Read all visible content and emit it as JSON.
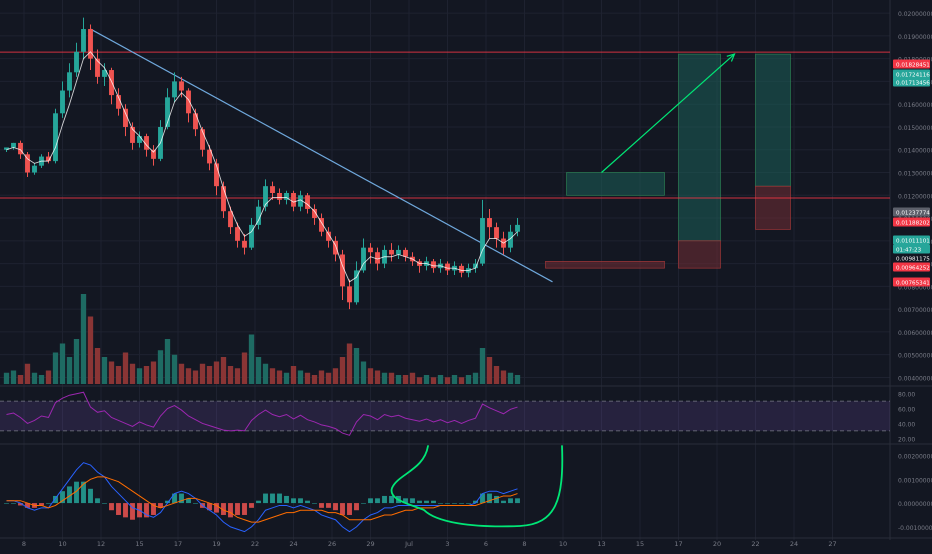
{
  "colors": {
    "background": "#131722",
    "grid": "#1e2230",
    "up": "#26a69a",
    "down": "#ef5350",
    "volume_up": "#1e6b63",
    "volume_down": "#8a3535",
    "horizontal_line": "#f23645",
    "trendline": "#6fa8dc",
    "ma_line": "#ffffff",
    "rsi_line": "#9c27b0",
    "rsi_band": "#7e57c2",
    "macd_line": "#2962ff",
    "signal_line": "#ff6d00",
    "hist_up": "#26a69a",
    "hist_down": "#ef5350",
    "annotation_green": "#00e676",
    "target_zone": "#1b5e58",
    "stop_zone": "#6b2b33",
    "axis_text": "#787b86"
  },
  "chart_data": [
    {
      "type": "candlestick",
      "panel": "price",
      "symbol_pair": "",
      "x_tick_labels": [
        "8",
        "10",
        "12",
        "15",
        "17",
        "19",
        "22",
        "24",
        "26",
        "29",
        "Jul",
        "3",
        "6",
        "8",
        "10",
        "13",
        "15",
        "17",
        "20",
        "22",
        "24",
        "27"
      ],
      "y_tick_labels": [
        "0.02000000",
        "0.01900000",
        "0.01800000",
        "0.01700000",
        "0.01600000",
        "0.01500000",
        "0.01400000",
        "0.01300000",
        "0.01200000",
        "0.01100000",
        "0.01000000",
        "0.00900000",
        "0.00800000",
        "0.00700000",
        "0.00600000",
        "0.00500000",
        "0.00400000"
      ],
      "ylim": [
        0.0038,
        0.0204
      ],
      "price_labels": [
        {
          "text": "0.01828451",
          "color": "#f23645"
        },
        {
          "text": "0.01724116",
          "color": "#26a69a"
        },
        {
          "text": "0.01713456",
          "color": "#26a69a"
        },
        {
          "text": "0.01237774",
          "color": "#5d606b"
        },
        {
          "text": "0.01188202",
          "color": "#f23645"
        },
        {
          "text": "0.01011101",
          "color": "#26a69a"
        },
        {
          "text": "01:47:23",
          "color": "#26a69a"
        },
        {
          "text": "0.00981175",
          "color": "#131722"
        },
        {
          "text": "0.00964252",
          "color": "#f23645"
        },
        {
          "text": "0.00765341",
          "color": "#f23645"
        }
      ],
      "horizontal_levels": [
        0.01828451,
        0.01188202
      ],
      "trendline": {
        "from": [
          12,
          0.0193
        ],
        "to": [
          78,
          0.0082
        ]
      },
      "zones": [
        {
          "kind": "target",
          "x_range": [
            80,
            94
          ],
          "y_range": [
            0.012,
            0.013
          ]
        },
        {
          "kind": "stop",
          "x_range": [
            77,
            94
          ],
          "y_range": [
            0.0088,
            0.0091
          ]
        },
        {
          "kind": "target",
          "x_range": [
            96,
            102
          ],
          "y_range": [
            0.01,
            0.0182
          ]
        },
        {
          "kind": "stop",
          "x_range": [
            96,
            102
          ],
          "y_range": [
            0.0088,
            0.01
          ]
        },
        {
          "kind": "target",
          "x_range": [
            107,
            112
          ],
          "y_range": [
            0.0124,
            0.0182
          ]
        },
        {
          "kind": "stop",
          "x_range": [
            107,
            112
          ],
          "y_range": [
            0.0105,
            0.0124
          ]
        }
      ],
      "arrow": {
        "from": [
          85,
          0.013
        ],
        "to": [
          104,
          0.0182
        ]
      },
      "candles": [
        [
          0,
          0.014,
          0.0141,
          0.0141,
          0.0139
        ],
        [
          1,
          0.0141,
          0.0143,
          0.0143,
          0.014
        ],
        [
          2,
          0.0143,
          0.0138,
          0.0144,
          0.0136
        ],
        [
          3,
          0.0138,
          0.013,
          0.0139,
          0.0128
        ],
        [
          4,
          0.013,
          0.0133,
          0.0134,
          0.0129
        ],
        [
          5,
          0.0133,
          0.0137,
          0.0138,
          0.0132
        ],
        [
          6,
          0.0137,
          0.0135,
          0.0139,
          0.0134
        ],
        [
          7,
          0.0135,
          0.0156,
          0.0158,
          0.0134
        ],
        [
          8,
          0.0156,
          0.0166,
          0.017,
          0.0154
        ],
        [
          9,
          0.0166,
          0.0174,
          0.0178,
          0.0163
        ],
        [
          10,
          0.0174,
          0.0183,
          0.0187,
          0.0172
        ],
        [
          11,
          0.0183,
          0.0193,
          0.0198,
          0.018
        ],
        [
          12,
          0.0193,
          0.018,
          0.0195,
          0.0175
        ],
        [
          13,
          0.018,
          0.0172,
          0.0184,
          0.0169
        ],
        [
          14,
          0.0172,
          0.0175,
          0.0178,
          0.0168
        ],
        [
          15,
          0.0175,
          0.0164,
          0.0176,
          0.016
        ],
        [
          16,
          0.0164,
          0.0158,
          0.0167,
          0.0155
        ],
        [
          17,
          0.0158,
          0.015,
          0.016,
          0.0146
        ],
        [
          18,
          0.015,
          0.0143,
          0.0152,
          0.014
        ],
        [
          19,
          0.0143,
          0.0146,
          0.0148,
          0.0141
        ],
        [
          20,
          0.0146,
          0.014,
          0.0147,
          0.0137
        ],
        [
          21,
          0.014,
          0.0136,
          0.0142,
          0.0133
        ],
        [
          22,
          0.0136,
          0.015,
          0.0153,
          0.0135
        ],
        [
          23,
          0.015,
          0.0163,
          0.0167,
          0.0149
        ],
        [
          24,
          0.0163,
          0.017,
          0.0174,
          0.0161
        ],
        [
          25,
          0.017,
          0.0166,
          0.0172,
          0.0163
        ],
        [
          26,
          0.0166,
          0.0156,
          0.0167,
          0.0152
        ],
        [
          27,
          0.0156,
          0.0149,
          0.0158,
          0.0146
        ],
        [
          28,
          0.0149,
          0.014,
          0.015,
          0.0137
        ],
        [
          29,
          0.014,
          0.0134,
          0.0142,
          0.0131
        ],
        [
          30,
          0.0134,
          0.0124,
          0.0136,
          0.012
        ],
        [
          31,
          0.0124,
          0.0113,
          0.0126,
          0.011
        ],
        [
          32,
          0.0113,
          0.0106,
          0.0115,
          0.0103
        ],
        [
          33,
          0.0106,
          0.01,
          0.0108,
          0.0097
        ],
        [
          34,
          0.01,
          0.0097,
          0.0103,
          0.0094
        ],
        [
          35,
          0.0097,
          0.0107,
          0.011,
          0.0096
        ],
        [
          36,
          0.0107,
          0.0115,
          0.0118,
          0.0105
        ],
        [
          37,
          0.0115,
          0.0124,
          0.0127,
          0.0113
        ],
        [
          38,
          0.0124,
          0.0121,
          0.0126,
          0.0118
        ],
        [
          39,
          0.0121,
          0.0118,
          0.0123,
          0.0116
        ],
        [
          40,
          0.0118,
          0.0121,
          0.0122,
          0.0116
        ],
        [
          41,
          0.0121,
          0.0115,
          0.0122,
          0.0113
        ],
        [
          42,
          0.0115,
          0.012,
          0.0122,
          0.0113
        ],
        [
          43,
          0.012,
          0.0114,
          0.0121,
          0.0112
        ],
        [
          44,
          0.0114,
          0.011,
          0.0116,
          0.0107
        ],
        [
          45,
          0.011,
          0.0104,
          0.0112,
          0.0102
        ],
        [
          46,
          0.0104,
          0.01,
          0.0106,
          0.0097
        ],
        [
          47,
          0.01,
          0.0094,
          0.0102,
          0.0091
        ],
        [
          48,
          0.0094,
          0.008,
          0.0096,
          0.0074
        ],
        [
          49,
          0.008,
          0.0073,
          0.0083,
          0.007
        ],
        [
          50,
          0.0073,
          0.0087,
          0.0091,
          0.0072
        ],
        [
          51,
          0.0087,
          0.0097,
          0.0101,
          0.0086
        ],
        [
          52,
          0.0097,
          0.0095,
          0.0099,
          0.009
        ],
        [
          53,
          0.0095,
          0.009,
          0.0097,
          0.0087
        ],
        [
          54,
          0.009,
          0.0096,
          0.0098,
          0.0088
        ],
        [
          55,
          0.0096,
          0.0094,
          0.0099,
          0.0091
        ],
        [
          56,
          0.0094,
          0.0096,
          0.0098,
          0.0092
        ],
        [
          57,
          0.0096,
          0.0093,
          0.0097,
          0.0091
        ],
        [
          58,
          0.0093,
          0.0091,
          0.0095,
          0.0089
        ],
        [
          59,
          0.0091,
          0.0089,
          0.0092,
          0.0086
        ],
        [
          60,
          0.0089,
          0.0091,
          0.0093,
          0.0087
        ],
        [
          61,
          0.0091,
          0.0088,
          0.0092,
          0.0086
        ],
        [
          62,
          0.0088,
          0.009,
          0.0092,
          0.0086
        ],
        [
          63,
          0.009,
          0.0087,
          0.0091,
          0.0085
        ],
        [
          64,
          0.0087,
          0.0089,
          0.0091,
          0.0085
        ],
        [
          65,
          0.0089,
          0.0086,
          0.009,
          0.0084
        ],
        [
          66,
          0.0086,
          0.0088,
          0.009,
          0.0084
        ],
        [
          67,
          0.0088,
          0.009,
          0.0092,
          0.0086
        ],
        [
          68,
          0.009,
          0.011,
          0.0118,
          0.0089
        ],
        [
          69,
          0.011,
          0.0106,
          0.0114,
          0.0101
        ],
        [
          70,
          0.0106,
          0.0101,
          0.0108,
          0.0097
        ],
        [
          71,
          0.0101,
          0.0097,
          0.0104,
          0.0094
        ],
        [
          72,
          0.0097,
          0.0104,
          0.0107,
          0.0095
        ],
        [
          73,
          0.0104,
          0.0107,
          0.011,
          0.0102
        ]
      ],
      "ma": [
        0.014,
        0.0141,
        0.014,
        0.0136,
        0.0134,
        0.0135,
        0.0135,
        0.0141,
        0.0151,
        0.016,
        0.017,
        0.018,
        0.0183,
        0.0179,
        0.0176,
        0.017,
        0.0163,
        0.0156,
        0.0149,
        0.0146,
        0.0142,
        0.0139,
        0.0143,
        0.0152,
        0.0161,
        0.0165,
        0.0162,
        0.0156,
        0.0148,
        0.0141,
        0.0133,
        0.0123,
        0.0114,
        0.0107,
        0.0102,
        0.0104,
        0.0109,
        0.0116,
        0.0119,
        0.0119,
        0.0119,
        0.0117,
        0.0118,
        0.0116,
        0.0113,
        0.0108,
        0.0103,
        0.0098,
        0.0089,
        0.0082,
        0.0084,
        0.009,
        0.0093,
        0.0092,
        0.0093,
        0.0093,
        0.0094,
        0.0093,
        0.0092,
        0.009,
        0.009,
        0.0089,
        0.0089,
        0.0088,
        0.0088,
        0.0087,
        0.0087,
        0.0088,
        0.0096,
        0.0101,
        0.0101,
        0.0099,
        0.0101,
        0.0104
      ]
    },
    {
      "type": "bar",
      "panel": "volume",
      "values": [
        5,
        6,
        4,
        9,
        5,
        4,
        6,
        14,
        18,
        12,
        20,
        40,
        30,
        16,
        12,
        10,
        8,
        14,
        9,
        7,
        8,
        10,
        15,
        20,
        13,
        9,
        7,
        6,
        9,
        8,
        10,
        12,
        8,
        7,
        14,
        22,
        12,
        9,
        7,
        6,
        5,
        8,
        6,
        5,
        4,
        6,
        5,
        7,
        12,
        18,
        16,
        10,
        7,
        6,
        5,
        5,
        4,
        4,
        5,
        3,
        4,
        3,
        4,
        3,
        4,
        3,
        4,
        5,
        16,
        12,
        8,
        6,
        5,
        4
      ]
    },
    {
      "type": "line",
      "panel": "rsi",
      "y_tick_labels": [
        "80.00",
        "60.00",
        "40.00",
        "20.00"
      ],
      "ylim": [
        15,
        85
      ],
      "bands": [
        70,
        30
      ],
      "values": [
        52,
        54,
        48,
        40,
        44,
        50,
        48,
        68,
        74,
        78,
        80,
        82,
        62,
        55,
        57,
        48,
        44,
        40,
        36,
        42,
        38,
        35,
        50,
        60,
        64,
        58,
        50,
        45,
        40,
        37,
        34,
        31,
        30,
        31,
        30,
        44,
        52,
        58,
        52,
        49,
        52,
        46,
        51,
        45,
        42,
        38,
        36,
        33,
        27,
        24,
        42,
        52,
        50,
        45,
        52,
        49,
        51,
        47,
        45,
        43,
        46,
        42,
        45,
        41,
        44,
        40,
        44,
        47,
        66,
        61,
        57,
        53,
        59,
        62
      ]
    },
    {
      "type": "line",
      "panel": "macd",
      "y_tick_labels": [
        "0.00200000",
        "0.00100000",
        "0.00000000",
        "-0.00100000"
      ],
      "ylim": [
        -0.0013,
        0.0024
      ],
      "macd": [
        0.0001,
        0.0001,
        0.0,
        -0.0002,
        -0.0003,
        -0.0002,
        -0.0002,
        0.0002,
        0.0006,
        0.001,
        0.0014,
        0.0017,
        0.0016,
        0.0013,
        0.0011,
        0.0007,
        0.0004,
        0.0001,
        -0.0002,
        -0.0003,
        -0.0005,
        -0.0006,
        -0.0004,
        0.0,
        0.0004,
        0.0005,
        0.0004,
        0.0002,
        -0.0001,
        -0.0003,
        -0.0005,
        -0.0008,
        -0.001,
        -0.0011,
        -0.0012,
        -0.001,
        -0.0007,
        -0.0003,
        -0.0002,
        -0.0001,
        -0.0001,
        -0.0002,
        -0.0001,
        -0.0002,
        -0.0003,
        -0.0005,
        -0.0006,
        -0.0007,
        -0.001,
        -0.0012,
        -0.001,
        -0.0007,
        -0.0005,
        -0.0004,
        -0.0002,
        -0.0002,
        -0.0001,
        -0.0001,
        -0.0001,
        -0.0001,
        -0.0001,
        -0.0001,
        -0.0001,
        -0.0001,
        -0.0001,
        -0.0001,
        -0.0001,
        0.0,
        0.0004,
        0.0005,
        0.0005,
        0.0004,
        0.0005,
        0.0006
      ],
      "signal": [
        0.0001,
        0.0001,
        0.0001,
        0.0,
        -0.0001,
        -0.0001,
        -0.0002,
        -0.0001,
        0.0001,
        0.0003,
        0.0005,
        0.0008,
        0.001,
        0.0011,
        0.0011,
        0.001,
        0.0009,
        0.0007,
        0.0005,
        0.0003,
        0.0001,
        -0.0001,
        -0.0002,
        -0.0001,
        0.0,
        0.0001,
        0.0002,
        0.0002,
        0.0001,
        0.0,
        -0.0001,
        -0.0003,
        -0.0004,
        -0.0006,
        -0.0007,
        -0.0008,
        -0.0008,
        -0.0007,
        -0.0006,
        -0.0005,
        -0.0004,
        -0.0004,
        -0.0003,
        -0.0003,
        -0.0003,
        -0.0003,
        -0.0004,
        -0.0004,
        -0.0005,
        -0.0007,
        -0.0007,
        -0.0007,
        -0.0007,
        -0.0006,
        -0.0005,
        -0.0005,
        -0.0004,
        -0.0003,
        -0.0003,
        -0.0002,
        -0.0002,
        -0.0002,
        -0.0001,
        -0.0001,
        -0.0001,
        -0.0001,
        -0.0001,
        -0.0001,
        0.0,
        0.0001,
        0.0002,
        0.0003,
        0.0003,
        0.0004
      ]
    }
  ]
}
